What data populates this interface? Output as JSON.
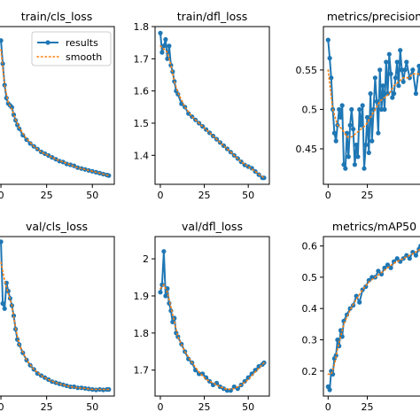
{
  "colors": {
    "results": "#1f77b4",
    "smooth": "#ff7f0e"
  },
  "legend": {
    "results_label": "results",
    "smooth_label": "smooth",
    "placement": "top-right"
  },
  "chart_data": [
    {
      "type": "line",
      "title": "train/cls_loss",
      "xlim": [
        -1,
        62
      ],
      "ylim": [
        0.55,
        2.25
      ],
      "xticks": [
        0,
        25,
        50
      ],
      "yticks": [],
      "legend": true,
      "series": [
        {
          "name": "results",
          "x": [
            0,
            1,
            2,
            3,
            4,
            5,
            6,
            7,
            8,
            9,
            10,
            12,
            14,
            16,
            18,
            20,
            22,
            24,
            26,
            28,
            30,
            32,
            34,
            36,
            38,
            40,
            42,
            44,
            46,
            48,
            50,
            52,
            54,
            56,
            58,
            59
          ],
          "y": [
            2.1,
            1.85,
            1.62,
            1.48,
            1.42,
            1.4,
            1.38,
            1.3,
            1.24,
            1.19,
            1.15,
            1.08,
            1.03,
            0.99,
            0.96,
            0.93,
            0.9,
            0.88,
            0.86,
            0.84,
            0.82,
            0.8,
            0.79,
            0.77,
            0.76,
            0.75,
            0.73,
            0.72,
            0.71,
            0.7,
            0.69,
            0.68,
            0.67,
            0.66,
            0.65,
            0.645
          ]
        },
        {
          "name": "smooth",
          "x": [
            0,
            2,
            4,
            6,
            8,
            10,
            14,
            18,
            22,
            26,
            30,
            34,
            38,
            42,
            46,
            50,
            54,
            59
          ],
          "y": [
            2.0,
            1.62,
            1.43,
            1.36,
            1.25,
            1.16,
            1.04,
            0.96,
            0.9,
            0.86,
            0.82,
            0.79,
            0.76,
            0.73,
            0.71,
            0.69,
            0.67,
            0.645
          ]
        }
      ]
    },
    {
      "type": "line",
      "title": "train/dfl_loss",
      "xlim": [
        -3,
        62
      ],
      "ylim": [
        1.31,
        1.8
      ],
      "xticks": [
        0,
        25,
        50
      ],
      "yticks": [
        1.4,
        1.5,
        1.6,
        1.7,
        1.8
      ],
      "series": [
        {
          "name": "results",
          "x": [
            0,
            1,
            2,
            3,
            4,
            5,
            6,
            7,
            8,
            9,
            10,
            12,
            14,
            16,
            18,
            20,
            22,
            24,
            26,
            28,
            30,
            32,
            34,
            36,
            38,
            40,
            42,
            44,
            46,
            48,
            50,
            52,
            54,
            56,
            58,
            59
          ],
          "y": [
            1.78,
            1.72,
            1.74,
            1.76,
            1.7,
            1.74,
            1.68,
            1.66,
            1.63,
            1.6,
            1.59,
            1.56,
            1.55,
            1.53,
            1.52,
            1.51,
            1.5,
            1.49,
            1.48,
            1.47,
            1.46,
            1.45,
            1.44,
            1.43,
            1.42,
            1.41,
            1.4,
            1.39,
            1.38,
            1.37,
            1.365,
            1.36,
            1.35,
            1.34,
            1.33,
            1.33
          ]
        },
        {
          "name": "smooth",
          "x": [
            0,
            2,
            4,
            6,
            8,
            10,
            14,
            18,
            22,
            26,
            30,
            34,
            38,
            42,
            46,
            50,
            54,
            59
          ],
          "y": [
            1.74,
            1.73,
            1.72,
            1.68,
            1.63,
            1.595,
            1.55,
            1.52,
            1.5,
            1.48,
            1.46,
            1.44,
            1.42,
            1.4,
            1.38,
            1.365,
            1.35,
            1.33
          ]
        }
      ]
    },
    {
      "type": "line",
      "title": "metrics/precision",
      "xlim": [
        -3,
        62
      ],
      "ylim": [
        0.405,
        0.605
      ],
      "xticks": [
        0,
        25
      ],
      "yticks": [
        0.45,
        0.5,
        0.55
      ],
      "series": [
        {
          "name": "results",
          "x": [
            0,
            1,
            2,
            3,
            4,
            5,
            6,
            7,
            8,
            9,
            10,
            11,
            12,
            13,
            14,
            15,
            16,
            17,
            18,
            19,
            20,
            21,
            22,
            23,
            24,
            25,
            26,
            27,
            28,
            29,
            30,
            31,
            32,
            33,
            34,
            35,
            36,
            37,
            38,
            39,
            40,
            41,
            42,
            43,
            44,
            45,
            46,
            47,
            48,
            49,
            50,
            52,
            54,
            56,
            58,
            59
          ],
          "y": [
            0.588,
            0.565,
            0.54,
            0.5,
            0.47,
            0.46,
            0.48,
            0.5,
            0.49,
            0.505,
            0.43,
            0.425,
            0.47,
            0.44,
            0.48,
            0.5,
            0.475,
            0.43,
            0.455,
            0.44,
            0.5,
            0.48,
            0.505,
            0.425,
            0.455,
            0.49,
            0.445,
            0.52,
            0.46,
            0.5,
            0.54,
            0.51,
            0.47,
            0.55,
            0.5,
            0.53,
            0.5,
            0.56,
            0.52,
            0.57,
            0.545,
            0.515,
            0.52,
            0.54,
            0.56,
            0.53,
            0.575,
            0.55,
            0.535,
            0.55,
            0.56,
            0.54,
            0.55,
            0.52,
            0.555,
            0.545
          ]
        },
        {
          "name": "smooth",
          "x": [
            0,
            3,
            6,
            9,
            12,
            15,
            18,
            21,
            24,
            27,
            30,
            33,
            36,
            39,
            42,
            45,
            48,
            51,
            54,
            59
          ],
          "y": [
            0.55,
            0.5,
            0.48,
            0.475,
            0.465,
            0.465,
            0.47,
            0.475,
            0.48,
            0.49,
            0.5,
            0.51,
            0.515,
            0.52,
            0.53,
            0.535,
            0.54,
            0.54,
            0.545,
            0.545
          ]
        }
      ]
    },
    {
      "type": "line",
      "title": "val/cls_loss",
      "xlim": [
        -1,
        62
      ],
      "ylim": [
        0.6,
        2.15
      ],
      "xticks": [
        0,
        25,
        50
      ],
      "yticks": [],
      "series": [
        {
          "name": "results",
          "x": [
            0,
            1,
            2,
            3,
            4,
            5,
            6,
            7,
            8,
            9,
            10,
            12,
            14,
            16,
            18,
            20,
            22,
            24,
            26,
            28,
            30,
            32,
            34,
            36,
            38,
            40,
            42,
            44,
            46,
            48,
            50,
            52,
            54,
            56,
            58,
            59
          ],
          "y": [
            2.1,
            1.5,
            1.45,
            1.7,
            1.62,
            1.55,
            1.48,
            1.38,
            1.25,
            1.15,
            1.1,
            1.02,
            0.95,
            0.9,
            0.86,
            0.82,
            0.8,
            0.78,
            0.76,
            0.74,
            0.73,
            0.72,
            0.71,
            0.7,
            0.69,
            0.69,
            0.68,
            0.68,
            0.675,
            0.67,
            0.665,
            0.66,
            0.665,
            0.66,
            0.665,
            0.665
          ]
        },
        {
          "name": "smooth",
          "x": [
            0,
            2,
            4,
            6,
            8,
            10,
            14,
            18,
            22,
            26,
            30,
            34,
            38,
            42,
            46,
            50,
            54,
            59
          ],
          "y": [
            1.9,
            1.72,
            1.6,
            1.48,
            1.26,
            1.1,
            0.95,
            0.86,
            0.8,
            0.76,
            0.73,
            0.71,
            0.69,
            0.68,
            0.675,
            0.665,
            0.665,
            0.665
          ]
        }
      ]
    },
    {
      "type": "line",
      "title": "val/dfl_loss",
      "xlim": [
        -3,
        62
      ],
      "ylim": [
        1.63,
        2.06
      ],
      "xticks": [
        0,
        25,
        50
      ],
      "yticks": [
        1.7,
        1.8,
        1.9,
        2.0
      ],
      "series": [
        {
          "name": "results",
          "x": [
            0,
            1,
            2,
            3,
            4,
            5,
            6,
            7,
            8,
            9,
            10,
            12,
            14,
            16,
            18,
            20,
            22,
            24,
            26,
            28,
            30,
            32,
            34,
            36,
            38,
            40,
            42,
            44,
            46,
            48,
            50,
            52,
            54,
            56,
            58,
            59
          ],
          "y": [
            1.91,
            1.93,
            2.02,
            1.9,
            1.92,
            1.88,
            1.86,
            1.83,
            1.84,
            1.8,
            1.79,
            1.77,
            1.75,
            1.73,
            1.72,
            1.7,
            1.69,
            1.69,
            1.68,
            1.67,
            1.66,
            1.665,
            1.655,
            1.65,
            1.645,
            1.645,
            1.655,
            1.65,
            1.66,
            1.67,
            1.68,
            1.69,
            1.7,
            1.71,
            1.715,
            1.72
          ]
        },
        {
          "name": "smooth",
          "x": [
            0,
            2,
            4,
            6,
            8,
            10,
            14,
            18,
            22,
            26,
            30,
            34,
            38,
            42,
            46,
            50,
            54,
            59
          ],
          "y": [
            1.92,
            1.93,
            1.91,
            1.87,
            1.83,
            1.79,
            1.75,
            1.72,
            1.695,
            1.675,
            1.665,
            1.655,
            1.648,
            1.65,
            1.66,
            1.675,
            1.695,
            1.72
          ]
        }
      ]
    },
    {
      "type": "line",
      "title": "metrics/mAP50",
      "xlim": [
        -3,
        62
      ],
      "ylim": [
        0.12,
        0.63
      ],
      "xticks": [
        0,
        25
      ],
      "yticks": [
        0.2,
        0.3,
        0.4,
        0.5,
        0.6
      ],
      "series": [
        {
          "name": "results",
          "x": [
            0,
            1,
            2,
            3,
            4,
            5,
            6,
            7,
            8,
            9,
            10,
            12,
            14,
            16,
            18,
            20,
            22,
            24,
            26,
            28,
            30,
            32,
            34,
            36,
            38,
            40,
            42,
            44,
            46,
            48,
            50,
            52,
            54,
            56,
            58,
            59
          ],
          "y": [
            0.15,
            0.14,
            0.2,
            0.19,
            0.24,
            0.25,
            0.3,
            0.28,
            0.33,
            0.31,
            0.36,
            0.38,
            0.4,
            0.41,
            0.44,
            0.42,
            0.46,
            0.47,
            0.49,
            0.5,
            0.5,
            0.52,
            0.51,
            0.53,
            0.54,
            0.53,
            0.55,
            0.56,
            0.55,
            0.56,
            0.57,
            0.56,
            0.58,
            0.57,
            0.59,
            0.6
          ]
        },
        {
          "name": "smooth",
          "x": [
            0,
            2,
            4,
            6,
            8,
            10,
            14,
            18,
            22,
            26,
            30,
            34,
            38,
            42,
            46,
            50,
            54,
            59
          ],
          "y": [
            0.19,
            0.19,
            0.22,
            0.27,
            0.31,
            0.35,
            0.395,
            0.43,
            0.46,
            0.485,
            0.5,
            0.515,
            0.53,
            0.545,
            0.555,
            0.565,
            0.575,
            0.59
          ]
        }
      ]
    }
  ]
}
